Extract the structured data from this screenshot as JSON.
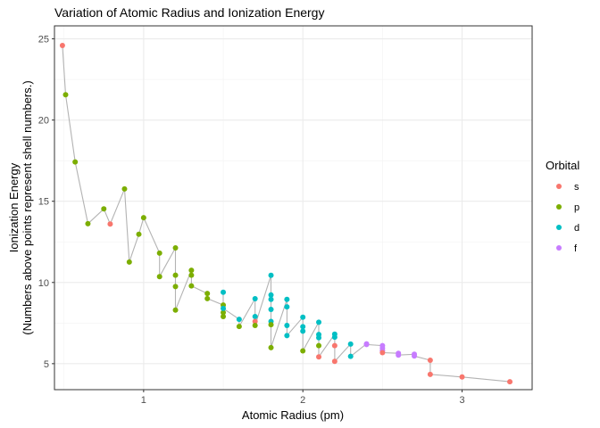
{
  "chart_data": {
    "type": "scatter",
    "title": "Variation of Atomic Radius and Ionization Energy",
    "xlabel": "Atomic Radius (pm)",
    "ylabel_lines": [
      "Ionization Energy",
      "(Numbers above points represent shell numbers.)"
    ],
    "xlim": [
      0.44,
      3.44
    ],
    "ylim": [
      3.4,
      25.8
    ],
    "x_ticks": [
      1,
      2,
      3
    ],
    "y_ticks": [
      5,
      10,
      15,
      20,
      25
    ],
    "grid": true,
    "legend": {
      "title": "Orbital",
      "position": "right",
      "entries": [
        {
          "label": "s",
          "color": "#F8766D"
        },
        {
          "label": "p",
          "color": "#7CAE00"
        },
        {
          "label": "d",
          "color": "#00BFC4"
        },
        {
          "label": "f",
          "color": "#C77CFF"
        }
      ]
    },
    "line_color": "#b3b3b3",
    "points": [
      {
        "x": 0.49,
        "y": 24.59,
        "orbital": "s"
      },
      {
        "x": 0.51,
        "y": 21.56,
        "orbital": "p"
      },
      {
        "x": 0.57,
        "y": 17.42,
        "orbital": "p"
      },
      {
        "x": 0.65,
        "y": 13.62,
        "orbital": "p"
      },
      {
        "x": 0.75,
        "y": 14.53,
        "orbital": "p"
      },
      {
        "x": 0.79,
        "y": 13.6,
        "orbital": "s"
      },
      {
        "x": 0.88,
        "y": 15.76,
        "orbital": "p"
      },
      {
        "x": 0.91,
        "y": 11.26,
        "orbital": "p"
      },
      {
        "x": 0.97,
        "y": 12.97,
        "orbital": "p"
      },
      {
        "x": 1.0,
        "y": 13.99,
        "orbital": "p"
      },
      {
        "x": 1.1,
        "y": 11.81,
        "orbital": "p"
      },
      {
        "x": 1.1,
        "y": 10.36,
        "orbital": "p"
      },
      {
        "x": 1.2,
        "y": 12.13,
        "orbital": "p"
      },
      {
        "x": 1.2,
        "y": 10.45,
        "orbital": "p"
      },
      {
        "x": 1.2,
        "y": 9.75,
        "orbital": "p"
      },
      {
        "x": 1.2,
        "y": 8.3,
        "orbital": "p"
      },
      {
        "x": 1.3,
        "y": 10.75,
        "orbital": "p"
      },
      {
        "x": 1.3,
        "y": 10.45,
        "orbital": "p"
      },
      {
        "x": 1.3,
        "y": 9.79,
        "orbital": "p"
      },
      {
        "x": 1.4,
        "y": 9.32,
        "orbital": "p"
      },
      {
        "x": 1.4,
        "y": 9.01,
        "orbital": "p"
      },
      {
        "x": 1.5,
        "y": 8.61,
        "orbital": "p"
      },
      {
        "x": 1.5,
        "y": 8.15,
        "orbital": "p"
      },
      {
        "x": 1.5,
        "y": 7.9,
        "orbital": "p"
      },
      {
        "x": 1.5,
        "y": 9.4,
        "orbital": "d"
      },
      {
        "x": 1.5,
        "y": 8.4,
        "orbital": "d"
      },
      {
        "x": 1.6,
        "y": 7.73,
        "orbital": "d"
      },
      {
        "x": 1.6,
        "y": 7.29,
        "orbital": "p"
      },
      {
        "x": 1.7,
        "y": 9.0,
        "orbital": "d"
      },
      {
        "x": 1.7,
        "y": 7.9,
        "orbital": "d"
      },
      {
        "x": 1.7,
        "y": 7.6,
        "orbital": "s"
      },
      {
        "x": 1.7,
        "y": 7.35,
        "orbital": "p"
      },
      {
        "x": 1.8,
        "y": 10.44,
        "orbital": "d"
      },
      {
        "x": 1.8,
        "y": 9.23,
        "orbital": "d"
      },
      {
        "x": 1.8,
        "y": 8.96,
        "orbital": "d"
      },
      {
        "x": 1.8,
        "y": 8.34,
        "orbital": "d"
      },
      {
        "x": 1.8,
        "y": 7.6,
        "orbital": "d"
      },
      {
        "x": 1.8,
        "y": 7.4,
        "orbital": "p"
      },
      {
        "x": 1.8,
        "y": 5.99,
        "orbital": "p"
      },
      {
        "x": 1.9,
        "y": 8.96,
        "orbital": "d"
      },
      {
        "x": 1.9,
        "y": 8.5,
        "orbital": "d"
      },
      {
        "x": 1.9,
        "y": 7.35,
        "orbital": "d"
      },
      {
        "x": 1.9,
        "y": 6.73,
        "orbital": "d"
      },
      {
        "x": 2.0,
        "y": 7.86,
        "orbital": "d"
      },
      {
        "x": 2.0,
        "y": 7.28,
        "orbital": "d"
      },
      {
        "x": 2.0,
        "y": 7.0,
        "orbital": "d"
      },
      {
        "x": 2.0,
        "y": 5.79,
        "orbital": "p"
      },
      {
        "x": 2.1,
        "y": 7.55,
        "orbital": "d"
      },
      {
        "x": 2.1,
        "y": 6.8,
        "orbital": "d"
      },
      {
        "x": 2.1,
        "y": 6.6,
        "orbital": "d"
      },
      {
        "x": 2.1,
        "y": 6.11,
        "orbital": "p"
      },
      {
        "x": 2.1,
        "y": 5.42,
        "orbital": "s"
      },
      {
        "x": 2.2,
        "y": 6.82,
        "orbital": "d"
      },
      {
        "x": 2.2,
        "y": 6.63,
        "orbital": "d"
      },
      {
        "x": 2.2,
        "y": 6.11,
        "orbital": "s"
      },
      {
        "x": 2.2,
        "y": 5.14,
        "orbital": "s"
      },
      {
        "x": 2.3,
        "y": 6.21,
        "orbital": "d"
      },
      {
        "x": 2.3,
        "y": 5.45,
        "orbital": "d"
      },
      {
        "x": 2.4,
        "y": 6.22,
        "orbital": "f"
      },
      {
        "x": 2.4,
        "y": 6.18,
        "orbital": "f"
      },
      {
        "x": 2.5,
        "y": 6.11,
        "orbital": "f"
      },
      {
        "x": 2.5,
        "y": 5.95,
        "orbital": "f"
      },
      {
        "x": 2.5,
        "y": 5.8,
        "orbital": "f"
      },
      {
        "x": 2.5,
        "y": 5.68,
        "orbital": "s"
      },
      {
        "x": 2.6,
        "y": 5.64,
        "orbital": "f"
      },
      {
        "x": 2.6,
        "y": 5.53,
        "orbital": "f"
      },
      {
        "x": 2.7,
        "y": 5.58,
        "orbital": "f"
      },
      {
        "x": 2.7,
        "y": 5.47,
        "orbital": "f"
      },
      {
        "x": 2.8,
        "y": 5.21,
        "orbital": "s"
      },
      {
        "x": 2.8,
        "y": 4.34,
        "orbital": "s"
      },
      {
        "x": 3.0,
        "y": 4.18,
        "orbital": "s"
      },
      {
        "x": 3.3,
        "y": 3.89,
        "orbital": "s"
      }
    ]
  }
}
